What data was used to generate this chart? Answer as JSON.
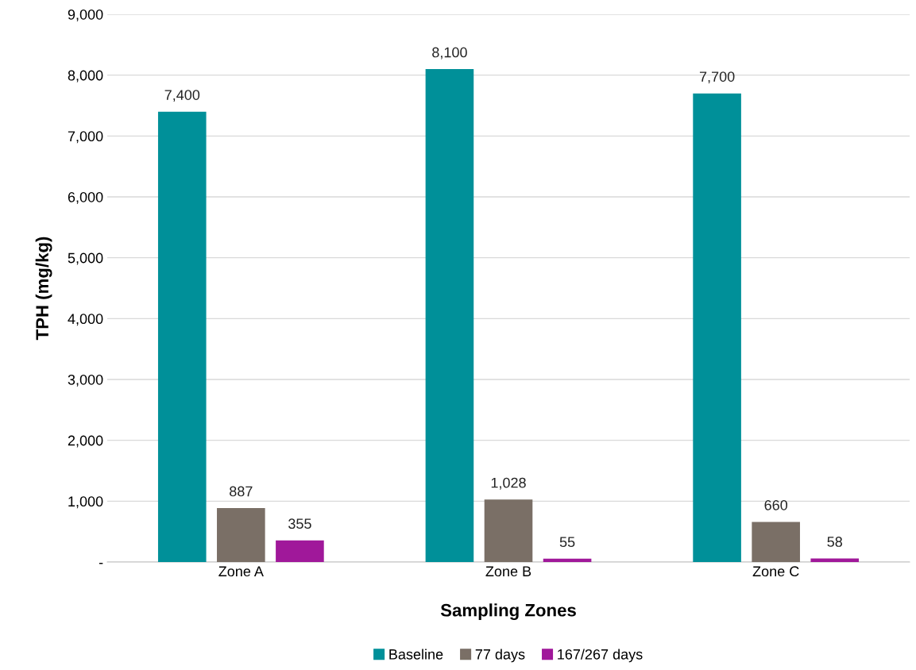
{
  "chart_data": {
    "type": "bar",
    "xlabel": "Sampling Zones",
    "ylabel": "TPH (mg/kg)",
    "categories": [
      "Zone A",
      "Zone B",
      "Zone C"
    ],
    "series": [
      {
        "name": "Baseline",
        "color": "#009099",
        "values": [
          7400,
          8100,
          7700
        ],
        "value_labels": [
          "7,400",
          "8,100",
          "7,700"
        ]
      },
      {
        "name": "77 days",
        "color": "#7a6f66",
        "values": [
          887,
          1028,
          660
        ],
        "value_labels": [
          "887",
          "1,028",
          "660"
        ]
      },
      {
        "name": "167/267 days",
        "color": "#a0189a",
        "values": [
          355,
          55,
          58
        ],
        "value_labels": [
          "355",
          "55",
          "58"
        ]
      }
    ],
    "ylim": [
      0,
      9000
    ],
    "yticks": [
      {
        "value": 0,
        "label": "-"
      },
      {
        "value": 1000,
        "label": "1,000"
      },
      {
        "value": 2000,
        "label": "2,000"
      },
      {
        "value": 3000,
        "label": "3,000"
      },
      {
        "value": 4000,
        "label": "4,000"
      },
      {
        "value": 5000,
        "label": "5,000"
      },
      {
        "value": 6000,
        "label": "6,000"
      },
      {
        "value": 7000,
        "label": "7,000"
      },
      {
        "value": 8000,
        "label": "8,000"
      },
      {
        "value": 9000,
        "label": "9,000"
      }
    ],
    "grid": "y",
    "legend": "bottom"
  }
}
